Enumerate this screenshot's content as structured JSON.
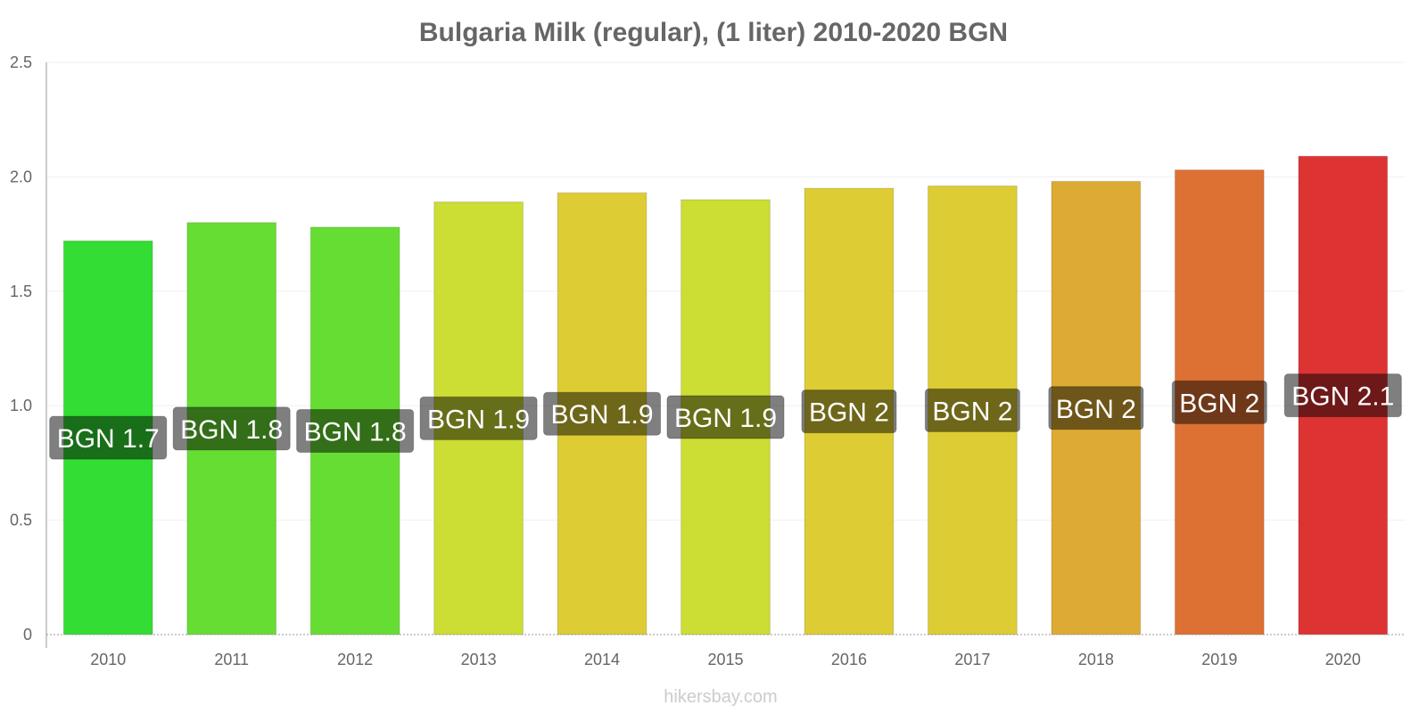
{
  "chart_data": {
    "type": "bar",
    "title": "Bulgaria Milk (regular), (1 liter) 2010-2020 BGN",
    "categories": [
      "2010",
      "2011",
      "2012",
      "2013",
      "2014",
      "2015",
      "2016",
      "2017",
      "2018",
      "2019",
      "2020"
    ],
    "values": [
      1.72,
      1.8,
      1.78,
      1.89,
      1.93,
      1.9,
      1.95,
      1.96,
      1.98,
      2.03,
      2.09
    ],
    "data_labels": [
      "BGN 1.7",
      "BGN 1.8",
      "BGN 1.8",
      "BGN 1.9",
      "BGN 1.9",
      "BGN 1.9",
      "BGN 2",
      "BGN 2",
      "BGN 2",
      "BGN 2",
      "BGN 2.1"
    ],
    "bar_colors": [
      "#33dd33",
      "#66dd33",
      "#66dd33",
      "#ccdd33",
      "#ddcc33",
      "#ccdd33",
      "#ddcc33",
      "#ddcc33",
      "#ddaa33",
      "#dd7033",
      "#dd3333"
    ],
    "ylim": [
      0,
      2.5
    ],
    "yticks": [
      0,
      0.5,
      1.0,
      1.5,
      2.0,
      2.5
    ],
    "ytick_labels": [
      "0",
      "0.5",
      "1.0",
      "1.5",
      "2.0",
      "2.5"
    ],
    "xlabel": "",
    "ylabel": "",
    "grid": true,
    "legend": "none"
  },
  "watermark": "hikersbay.com"
}
